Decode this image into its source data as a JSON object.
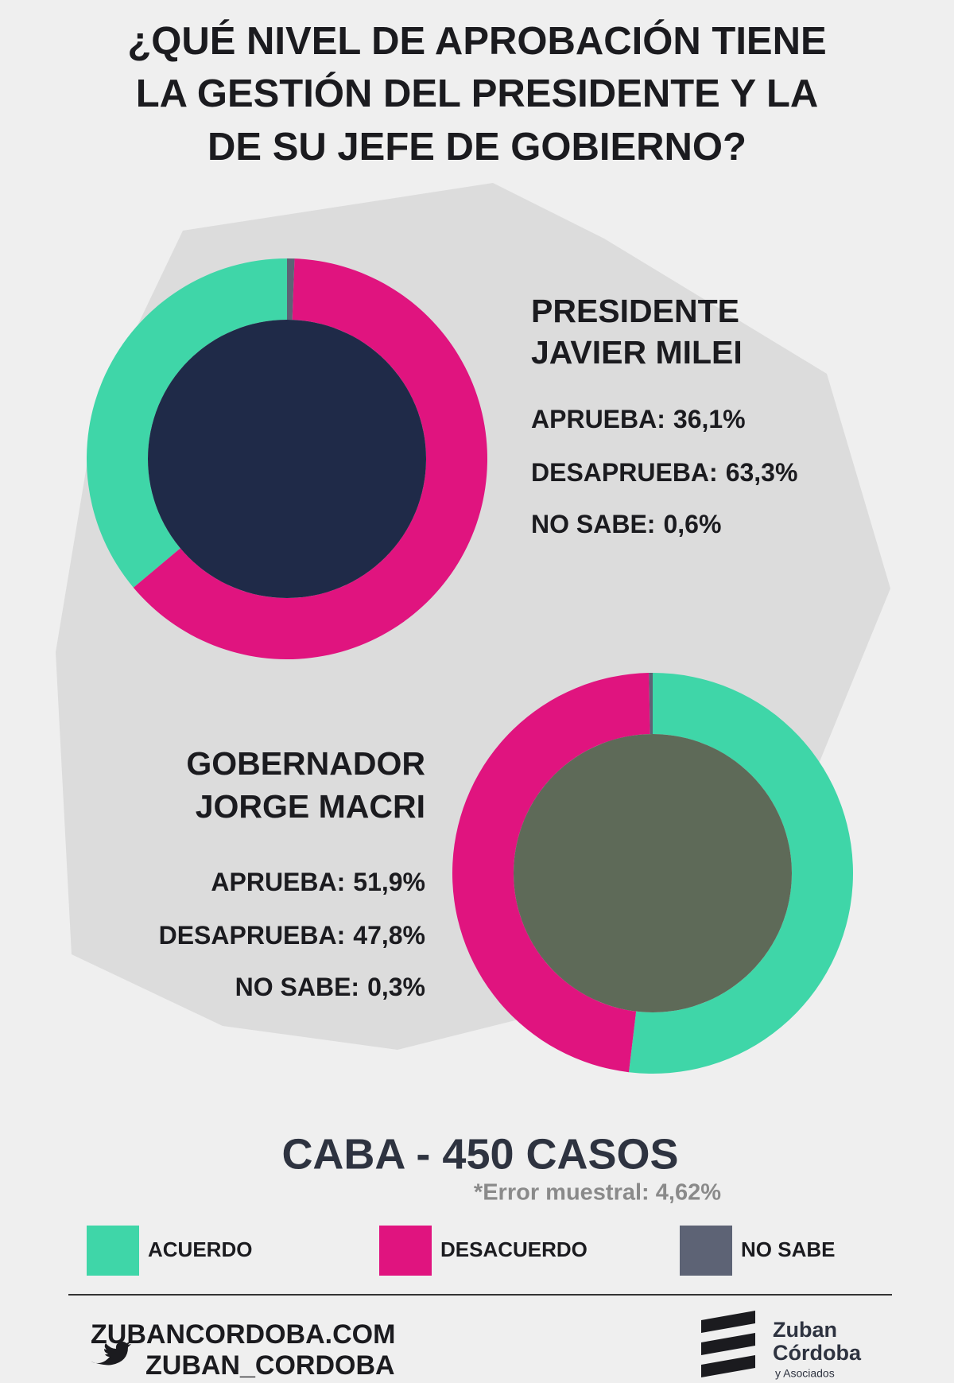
{
  "title": [
    "¿QUÉ NIVEL DE APROBACIÓN TIENE",
    "LA GESTIÓN DEL PRESIDENTE Y LA",
    "DE SU JEFE DE GOBIERNO?"
  ],
  "chart_data": [
    {
      "type": "donut",
      "title": [
        "PRESIDENTE",
        "JAVIER MILEI"
      ],
      "direction": "counterclockwise",
      "categories": [
        "APRUEBA:",
        "DESAPRUEBA:",
        "NO SABE:"
      ],
      "values": [
        36.1,
        63.3,
        0.6
      ],
      "value_labels": [
        "36,1%",
        "63,3%",
        "0,6%"
      ],
      "colors": [
        "#3fd6a8",
        "#e0147f",
        "#5d6375"
      ]
    },
    {
      "type": "donut",
      "title": [
        "GOBERNADOR",
        "JORGE MACRI"
      ],
      "direction": "clockwise",
      "categories": [
        "APRUEBA:",
        "DESAPRUEBA:",
        "NO SABE:"
      ],
      "values": [
        51.9,
        47.8,
        0.3
      ],
      "value_labels": [
        "51,9%",
        "47,8%",
        "0,3%"
      ],
      "colors": [
        "#3fd6a8",
        "#e0147f",
        "#5d6375"
      ]
    }
  ],
  "legend": [
    {
      "name": "ACUERDO",
      "color": "#3fd6a8"
    },
    {
      "name": "DESACUERDO",
      "color": "#e0147f"
    },
    {
      "name": "NO SABE",
      "color": "#5d6375"
    }
  ],
  "footer": {
    "sample": "CABA - 450 CASOS",
    "error": "*Error muestral: 4,62%",
    "website": "ZUBANCORDOBA.COM",
    "twitter": "ZUBAN_CORDOBA",
    "logo": [
      "Zuban",
      "Córdoba",
      "y Asociados"
    ]
  }
}
